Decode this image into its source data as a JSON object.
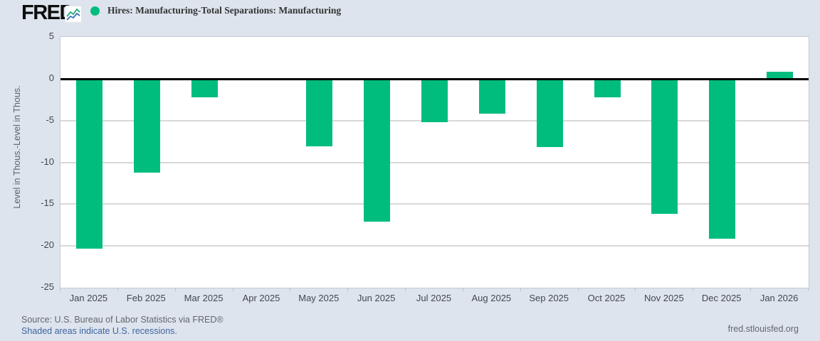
{
  "header": {
    "logo_text": "FRED",
    "logo_reg": "®",
    "sparkline_icon": "dual-zigzag-lines",
    "legend_marker": "circle",
    "series_label": "Hires: Manufacturing-Total Separations: Manufacturing"
  },
  "chart_data": {
    "type": "bar",
    "title": "Hires: Manufacturing-Total Separations: Manufacturing",
    "categories": [
      "Jan 2025",
      "Feb 2025",
      "Mar 2025",
      "Apr 2025",
      "May 2025",
      "Jun 2025",
      "Jul 2025",
      "Aug 2025",
      "Sep 2025",
      "Oct 2025",
      "Nov 2025",
      "Dec 2025",
      "Jan 2026"
    ],
    "values": [
      -20.3,
      -11.2,
      -2.2,
      0,
      -8.1,
      -17.1,
      -5.2,
      -4.2,
      -8.2,
      -2.2,
      -16.2,
      -19.1,
      0.8
    ],
    "xlabel": "",
    "ylabel": "Level in Thous.-Level in Thous.",
    "yticks": [
      5,
      0,
      -5,
      -10,
      -15,
      -20,
      -25
    ],
    "ylim": [
      -25,
      5
    ],
    "grid": true,
    "zero_line": true,
    "legend_position": "top",
    "bar_color": "#00bd7d"
  },
  "footer": {
    "source_line": "Source: U.S. Bureau of Labor Statistics via FRED®",
    "recession_note": "Shaded areas indicate U.S. recessions.",
    "site_link": "fred.stlouisfed.org"
  },
  "colors": {
    "accent_green": "#00bd7d",
    "link_blue": "#3e63a0",
    "background": "#dde4ed",
    "plot_background": "#ffffff",
    "gridline": "#d8d8d8",
    "zero_line": "#000000"
  }
}
